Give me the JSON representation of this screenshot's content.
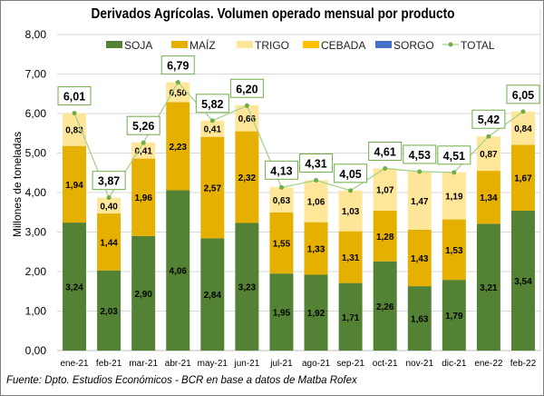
{
  "chart_data": {
    "type": "bar",
    "stacked": true,
    "title": "Derivados Agrícolas. Volumen operado mensual por producto",
    "ylabel": "Millones de toneladas",
    "xlabel": "",
    "ylim": [
      0,
      8
    ],
    "yticks": [
      "0,00",
      "1,00",
      "2,00",
      "3,00",
      "4,00",
      "5,00",
      "6,00",
      "7,00",
      "8,00"
    ],
    "grid": true,
    "legend_position": "top",
    "categories": [
      "ene-21",
      "feb-21",
      "mar-21",
      "abr-21",
      "may-21",
      "jun-21",
      "jul-21",
      "ago-21",
      "sep-21",
      "oct-21",
      "nov-21",
      "dic-21",
      "ene-22",
      "feb-22"
    ],
    "series": [
      {
        "name": "SOJA",
        "color": "#548235",
        "values": [
          3.24,
          2.03,
          2.9,
          4.06,
          2.84,
          3.23,
          1.95,
          1.92,
          1.71,
          2.26,
          1.63,
          1.79,
          3.21,
          3.54
        ]
      },
      {
        "name": "MAÍZ",
        "color": "#e6b000",
        "values": [
          1.94,
          1.44,
          1.96,
          2.23,
          2.57,
          2.32,
          1.55,
          1.33,
          1.31,
          1.28,
          1.43,
          1.53,
          1.34,
          1.67
        ]
      },
      {
        "name": "TRIGO",
        "color": "#ffe699",
        "values": [
          0.83,
          0.4,
          0.41,
          0.5,
          0.41,
          0.66,
          0.63,
          1.06,
          1.03,
          1.07,
          1.47,
          1.19,
          0.87,
          0.84
        ]
      },
      {
        "name": "CEBADA",
        "color": "#ffc000",
        "values": [
          0,
          0,
          0,
          0,
          0,
          0,
          0,
          0,
          0,
          0,
          0,
          0,
          0,
          0
        ]
      },
      {
        "name": "SORGO",
        "color": "#4472c4",
        "values": [
          0,
          0,
          0,
          0,
          0,
          0,
          0,
          0,
          0,
          0,
          0,
          0,
          0,
          0
        ]
      }
    ],
    "total": {
      "name": "TOTAL",
      "color": "#70ad47",
      "values": [
        6.01,
        3.87,
        5.26,
        6.79,
        5.82,
        6.2,
        4.13,
        4.31,
        4.05,
        4.61,
        4.53,
        4.51,
        5.42,
        6.05
      ]
    }
  },
  "footer": "Fuente: Dpto. Estudios Económicos - BCR en base a datos de Matba Rofex"
}
